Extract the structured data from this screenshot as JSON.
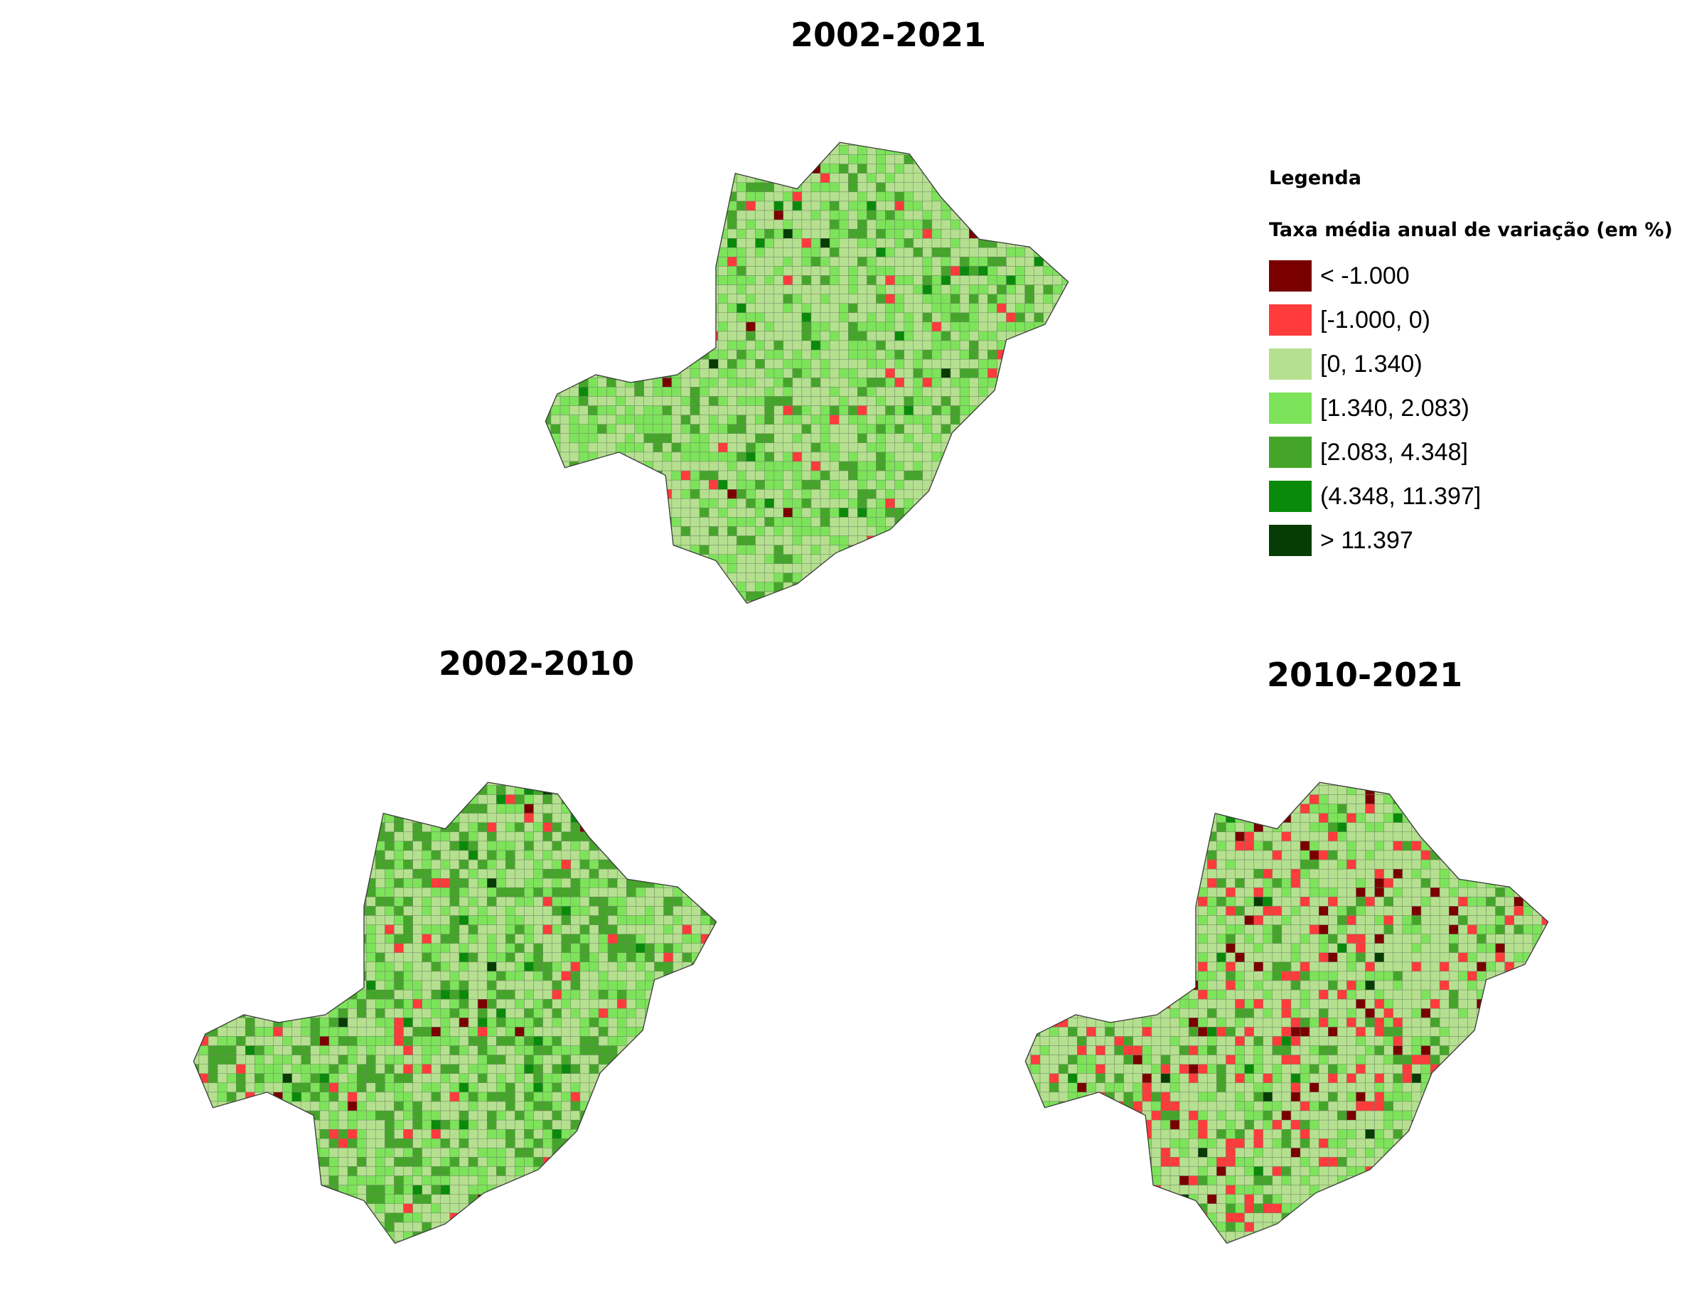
{
  "maps": [
    {
      "title": "2002-2021"
    },
    {
      "title": "2002-2010"
    },
    {
      "title": "2010-2021"
    }
  ],
  "legend": {
    "title": "Legenda",
    "subtitle": "Taxa média anual de variação (em %)",
    "classes": [
      {
        "label": "< -1.000",
        "color": "#7a0000"
      },
      {
        "label": "[-1.000, 0)",
        "color": "#ff3b3b"
      },
      {
        "label": "[0, 1.340)",
        "color": "#b5e08f"
      },
      {
        "label": "[1.340, 2.083)",
        "color": "#7de35a"
      },
      {
        "label": "[2.083, 4.348]",
        "color": "#45a52a"
      },
      {
        "label": "(4.348, 11.397]",
        "color": "#0a8a0a"
      },
      {
        "label": "> 11.397",
        "color": "#073d05"
      }
    ]
  }
}
